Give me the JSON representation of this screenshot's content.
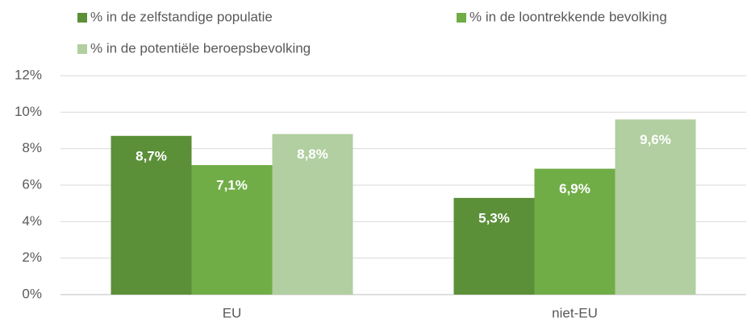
{
  "chart_data": {
    "type": "bar",
    "categories": [
      "EU",
      "niet-EU"
    ],
    "series": [
      {
        "name": "% in de zelfstandige populatie",
        "color": "#5b8f38",
        "values": [
          8.7,
          5.3
        ],
        "value_labels": [
          "8,7%",
          "5,3%"
        ]
      },
      {
        "name": "% in de loontrekkende bevolking",
        "color": "#70ad47",
        "values": [
          7.1,
          6.9
        ],
        "value_labels": [
          "7,1%",
          "6,9%"
        ]
      },
      {
        "name": "% in de potentiële beroepsbevolking",
        "color": "#b1cfa0",
        "values": [
          8.8,
          9.6
        ],
        "value_labels": [
          "8,8%",
          "9,6%"
        ]
      }
    ],
    "ylim": [
      0,
      12
    ],
    "yticks": [
      {
        "value": 0,
        "label": "0%"
      },
      {
        "value": 2,
        "label": "2%"
      },
      {
        "value": 4,
        "label": "4%"
      },
      {
        "value": 6,
        "label": "6%"
      },
      {
        "value": 8,
        "label": "8%"
      },
      {
        "value": 10,
        "label": "10%"
      },
      {
        "value": 12,
        "label": "12%"
      }
    ],
    "grid": true,
    "legend": "top"
  }
}
